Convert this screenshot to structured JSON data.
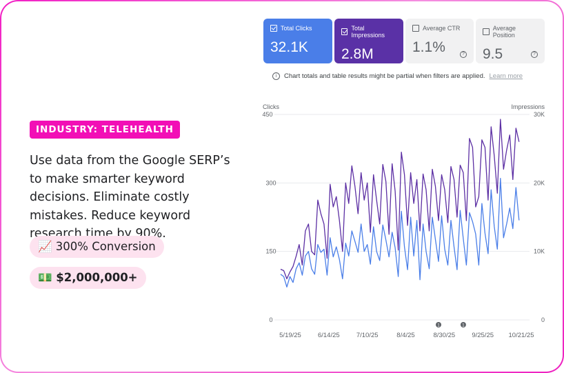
{
  "promo": {
    "industry_badge": "INDUSTRY: TELEHEALTH",
    "description": "Use data from the Google SERP’s to make smarter keyword decisions. Eliminate costly mistakes. Reduce keyword research time by 90%.",
    "stats": [
      {
        "icon": "📈",
        "label": "300% Conversion"
      },
      {
        "icon": "💵",
        "label": "$2,000,000+"
      }
    ]
  },
  "metrics": [
    {
      "label": "Total Clicks",
      "value": "32.1K",
      "checked": true,
      "color": "#4a7ee8"
    },
    {
      "label": "Total Impressions",
      "value": "2.8M",
      "checked": true,
      "color": "#5a31a6"
    },
    {
      "label": "Average CTR",
      "value": "1.1%",
      "checked": false,
      "help": "?"
    },
    {
      "label": "Average Position",
      "value": "9.5",
      "checked": false,
      "help": "?"
    }
  ],
  "notice": {
    "icon": "i",
    "text": "Chart totals and table results might be partial when filters are applied.",
    "link": "Learn more"
  },
  "chart_data": {
    "type": "line",
    "left_axis": {
      "label": "Clicks",
      "ticks": [
        "450",
        "300",
        "150",
        "0"
      ],
      "range": [
        0,
        450
      ]
    },
    "right_axis": {
      "label": "Impressions",
      "ticks": [
        "30K",
        "20K",
        "10K",
        "0"
      ],
      "range": [
        0,
        30000
      ]
    },
    "x_ticks": [
      "5/19/25",
      "6/14/25",
      "7/10/25",
      "8/4/25",
      "8/30/25",
      "9/25/25",
      "10/21/25"
    ],
    "x_range_days": [
      0,
      155
    ],
    "annotations": [
      {
        "day": 102,
        "label": "1"
      },
      {
        "day": 118,
        "label": "1"
      }
    ],
    "grid": true,
    "series": [
      {
        "name": "Clicks",
        "axis": "left",
        "color": "#4a7ee8",
        "x": [
          0,
          2,
          4,
          6,
          8,
          10,
          12,
          14,
          16,
          18,
          20,
          22,
          24,
          26,
          28,
          30,
          32,
          34,
          36,
          38,
          40,
          42,
          44,
          46,
          48,
          50,
          52,
          54,
          56,
          58,
          60,
          62,
          64,
          66,
          68,
          70,
          72,
          74,
          76,
          78,
          80,
          82,
          84,
          86,
          88,
          90,
          92,
          94,
          96,
          98,
          100,
          102,
          104,
          106,
          108,
          110,
          112,
          114,
          116,
          118,
          120,
          122,
          124,
          126,
          128,
          130,
          132,
          134,
          136,
          138,
          140,
          142,
          144,
          146,
          148,
          150,
          152,
          154
        ],
        "values": [
          100,
          95,
          72,
          95,
          82,
          112,
          125,
          98,
          140,
          150,
          112,
          100,
          165,
          148,
          155,
          98,
          180,
          138,
          160,
          132,
          90,
          168,
          140,
          195,
          172,
          148,
          210,
          150,
          165,
          122,
          204,
          150,
          130,
          208,
          175,
          138,
          192,
          158,
          95,
          238,
          160,
          110,
          225,
          140,
          218,
          88,
          210,
          150,
          112,
          225,
          176,
          128,
          228,
          155,
          120,
          218,
          160,
          110,
          240,
          178,
          120,
          235,
          215,
          188,
          120,
          255,
          190,
          145,
          285,
          205,
          155,
          310,
          180,
          210,
          245,
          200,
          290,
          218
        ]
      },
      {
        "name": "Impressions",
        "axis": "right",
        "color": "#5b2ea3",
        "x": [
          0,
          2,
          4,
          6,
          8,
          10,
          12,
          14,
          16,
          18,
          20,
          22,
          24,
          26,
          28,
          30,
          32,
          34,
          36,
          38,
          40,
          42,
          44,
          46,
          48,
          50,
          52,
          54,
          56,
          58,
          60,
          62,
          64,
          66,
          68,
          70,
          72,
          74,
          76,
          78,
          80,
          82,
          84,
          86,
          88,
          90,
          92,
          94,
          96,
          98,
          100,
          102,
          104,
          106,
          108,
          110,
          112,
          114,
          116,
          118,
          120,
          122,
          124,
          126,
          128,
          130,
          132,
          134,
          136,
          138,
          140,
          142,
          144,
          146,
          148,
          150,
          152,
          154
        ],
        "values": [
          7400,
          7200,
          6000,
          7000,
          7800,
          9300,
          11000,
          8000,
          13000,
          14000,
          10000,
          9500,
          17500,
          15500,
          14000,
          9000,
          19800,
          16500,
          18000,
          14500,
          10000,
          20000,
          17000,
          22500,
          19500,
          15500,
          21500,
          17500,
          20000,
          12800,
          21200,
          17500,
          14000,
          22700,
          20200,
          12500,
          22800,
          18800,
          10200,
          24500,
          21200,
          13800,
          21500,
          17000,
          20500,
          13000,
          21300,
          19000,
          13000,
          22000,
          19500,
          14500,
          21200,
          19000,
          14200,
          22400,
          20500,
          15000,
          22600,
          21500,
          14500,
          26500,
          25200,
          16500,
          18000,
          26300,
          25200,
          17500,
          28200,
          24000,
          18500,
          29300,
          22000,
          24800,
          27000,
          20500,
          28000,
          26000
        ]
      }
    ]
  }
}
